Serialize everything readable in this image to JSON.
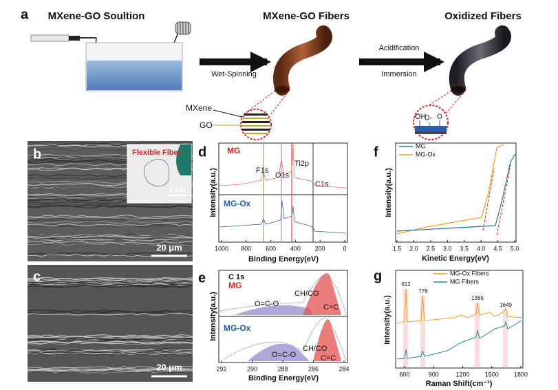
{
  "panels": {
    "a": {
      "label": "a",
      "titles": [
        "MXene-GO Soultion",
        "MXene-GO Fibers",
        "Oxidized Fibers"
      ],
      "arrows": [
        "Wet-Spinning",
        "Acidification",
        "Immersion"
      ],
      "legend": [
        "MXene",
        "GO"
      ],
      "groups": [
        "OH",
        "O-",
        "O"
      ]
    },
    "b": {
      "label": "b",
      "inset": "Flexible Fiber",
      "inset_scale": "1 cm",
      "scale": "20 μm"
    },
    "c": {
      "label": "c",
      "scale": "20 μm"
    },
    "d": {
      "label": "d",
      "series": [
        "MG",
        "MG-Ox"
      ],
      "peaks": [
        "F1s",
        "O1s",
        "Ti2p",
        "C1s"
      ],
      "ylabel": "Intensity(a.u.)",
      "xlabel": "Binding Energy(eV)",
      "xticks": [
        1000,
        800,
        600,
        400,
        200,
        0
      ]
    },
    "e": {
      "label": "e",
      "subtitle": "C 1s",
      "series": [
        "MG",
        "MG-Ox"
      ],
      "peaks_top": [
        "CH/CO",
        "O=C-O",
        "C=C"
      ],
      "peaks_bottom": [
        "CH/CO",
        "O=C-O",
        "C=C"
      ],
      "ylabel": "Intensity(a.u.)",
      "xlabel": "Binding Energy(eV)",
      "xticks": [
        292,
        290,
        288,
        286,
        284
      ]
    },
    "f": {
      "label": "f",
      "series": [
        "MG",
        "MG-Ox"
      ],
      "ylabel": "Intensity(a.u.)",
      "xlabel": "Kinetic Energy(eV)",
      "xticks": [
        "1.5",
        "2.0",
        "2.5",
        "3.0",
        "3.5",
        "4.0",
        "4.5",
        "5.0"
      ]
    },
    "g": {
      "label": "g",
      "series": [
        "MG-Ox Fibers",
        "MG  Fibers"
      ],
      "peaks": [
        612,
        776,
        1365,
        1649
      ],
      "ylabel": "Intensity(a.u.)",
      "xlabel": "Raman Shift(cm⁻¹)",
      "xticks": [
        600,
        900,
        1200,
        1500,
        1800
      ]
    }
  }
}
